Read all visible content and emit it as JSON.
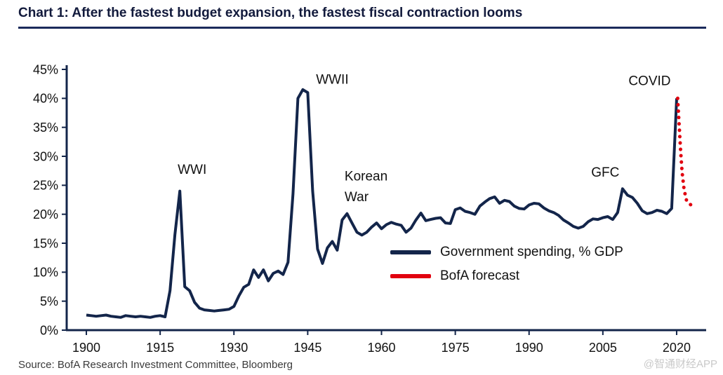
{
  "header": {
    "title": "Chart 1: After the fastest budget expansion, the fastest fiscal contraction looms"
  },
  "footer": {
    "source": "Source:  BofA Research Investment Committee, Bloomberg",
    "watermark": "@智通财经APP"
  },
  "colors": {
    "navy": "#13254a",
    "red": "#e1000f"
  },
  "chart_data": {
    "type": "line",
    "title": "Chart 1: After the fastest budget expansion, the fastest fiscal contraction looms",
    "xlabel": "",
    "ylabel": "",
    "xlim": [
      1896,
      2026
    ],
    "ylim": [
      0,
      45
    ],
    "yticks": [
      0,
      5,
      10,
      15,
      20,
      25,
      30,
      35,
      40,
      45
    ],
    "ytick_suffix": "%",
    "xticks": [
      1900,
      1915,
      1930,
      1945,
      1960,
      1975,
      1990,
      2005,
      2020
    ],
    "grid": false,
    "legend_position": "inside-lower-right",
    "series": [
      {
        "name": "Government spending, % GDP",
        "color_key": "navy",
        "style": "solid",
        "points": [
          [
            1900,
            2.6
          ],
          [
            1901,
            2.5
          ],
          [
            1902,
            2.4
          ],
          [
            1903,
            2.5
          ],
          [
            1904,
            2.6
          ],
          [
            1905,
            2.4
          ],
          [
            1906,
            2.3
          ],
          [
            1907,
            2.2
          ],
          [
            1908,
            2.5
          ],
          [
            1909,
            2.4
          ],
          [
            1910,
            2.3
          ],
          [
            1911,
            2.4
          ],
          [
            1912,
            2.3
          ],
          [
            1913,
            2.2
          ],
          [
            1914,
            2.4
          ],
          [
            1915,
            2.5
          ],
          [
            1916,
            2.3
          ],
          [
            1917,
            6.8
          ],
          [
            1918,
            16.5
          ],
          [
            1919,
            24.0
          ],
          [
            1920,
            7.5
          ],
          [
            1921,
            6.8
          ],
          [
            1922,
            4.8
          ],
          [
            1923,
            3.8
          ],
          [
            1924,
            3.5
          ],
          [
            1925,
            3.4
          ],
          [
            1926,
            3.3
          ],
          [
            1927,
            3.4
          ],
          [
            1928,
            3.5
          ],
          [
            1929,
            3.6
          ],
          [
            1930,
            4.1
          ],
          [
            1931,
            5.9
          ],
          [
            1932,
            7.4
          ],
          [
            1933,
            7.9
          ],
          [
            1934,
            10.4
          ],
          [
            1935,
            9.1
          ],
          [
            1936,
            10.4
          ],
          [
            1937,
            8.5
          ],
          [
            1938,
            9.8
          ],
          [
            1939,
            10.2
          ],
          [
            1940,
            9.6
          ],
          [
            1941,
            11.7
          ],
          [
            1942,
            23.5
          ],
          [
            1943,
            40.0
          ],
          [
            1944,
            41.5
          ],
          [
            1945,
            41.0
          ],
          [
            1946,
            24.0
          ],
          [
            1947,
            14.0
          ],
          [
            1948,
            11.5
          ],
          [
            1949,
            14.2
          ],
          [
            1950,
            15.3
          ],
          [
            1951,
            13.8
          ],
          [
            1952,
            19.0
          ],
          [
            1953,
            20.1
          ],
          [
            1954,
            18.5
          ],
          [
            1955,
            16.9
          ],
          [
            1956,
            16.4
          ],
          [
            1957,
            16.9
          ],
          [
            1958,
            17.8
          ],
          [
            1959,
            18.5
          ],
          [
            1960,
            17.5
          ],
          [
            1961,
            18.2
          ],
          [
            1962,
            18.6
          ],
          [
            1963,
            18.3
          ],
          [
            1964,
            18.1
          ],
          [
            1965,
            16.9
          ],
          [
            1966,
            17.6
          ],
          [
            1967,
            19.0
          ],
          [
            1968,
            20.2
          ],
          [
            1969,
            18.9
          ],
          [
            1970,
            19.1
          ],
          [
            1971,
            19.3
          ],
          [
            1972,
            19.4
          ],
          [
            1973,
            18.5
          ],
          [
            1974,
            18.4
          ],
          [
            1975,
            20.8
          ],
          [
            1976,
            21.1
          ],
          [
            1977,
            20.5
          ],
          [
            1978,
            20.3
          ],
          [
            1979,
            20.0
          ],
          [
            1980,
            21.4
          ],
          [
            1981,
            22.1
          ],
          [
            1982,
            22.7
          ],
          [
            1983,
            23.0
          ],
          [
            1984,
            21.9
          ],
          [
            1985,
            22.4
          ],
          [
            1986,
            22.2
          ],
          [
            1987,
            21.4
          ],
          [
            1988,
            21.0
          ],
          [
            1989,
            20.9
          ],
          [
            1990,
            21.6
          ],
          [
            1991,
            21.9
          ],
          [
            1992,
            21.8
          ],
          [
            1993,
            21.1
          ],
          [
            1994,
            20.6
          ],
          [
            1995,
            20.3
          ],
          [
            1996,
            19.8
          ],
          [
            1997,
            19.0
          ],
          [
            1998,
            18.5
          ],
          [
            1999,
            17.9
          ],
          [
            2000,
            17.6
          ],
          [
            2001,
            17.9
          ],
          [
            2002,
            18.7
          ],
          [
            2003,
            19.2
          ],
          [
            2004,
            19.1
          ],
          [
            2005,
            19.4
          ],
          [
            2006,
            19.6
          ],
          [
            2007,
            19.1
          ],
          [
            2008,
            20.3
          ],
          [
            2009,
            24.4
          ],
          [
            2010,
            23.3
          ],
          [
            2011,
            22.9
          ],
          [
            2012,
            21.9
          ],
          [
            2013,
            20.6
          ],
          [
            2014,
            20.1
          ],
          [
            2015,
            20.3
          ],
          [
            2016,
            20.7
          ],
          [
            2017,
            20.5
          ],
          [
            2018,
            20.1
          ],
          [
            2019,
            21.0
          ],
          [
            2020,
            40.0
          ]
        ]
      },
      {
        "name": "BofA forecast",
        "color_key": "red",
        "style": "dotted",
        "points": [
          [
            2020.2,
            40.0
          ],
          [
            2020.5,
            35.5
          ],
          [
            2020.8,
            31.0
          ],
          [
            2021.1,
            27.3
          ],
          [
            2021.5,
            24.3
          ],
          [
            2022.0,
            22.4
          ],
          [
            2022.7,
            21.7
          ],
          [
            2023.6,
            21.4
          ]
        ]
      }
    ],
    "annotations": [
      {
        "lines": [
          "WWI"
        ],
        "x": 1921.5,
        "y": 27.0,
        "anchor": "middle"
      },
      {
        "lines": [
          "WWII"
        ],
        "x": 1950.0,
        "y": 42.5,
        "anchor": "middle"
      },
      {
        "lines": [
          "Korean",
          "War"
        ],
        "x": 1952.5,
        "y": 25.8,
        "anchor": "start"
      },
      {
        "lines": [
          "GFC"
        ],
        "x": 2005.5,
        "y": 26.5,
        "anchor": "middle"
      },
      {
        "lines": [
          "COVID"
        ],
        "x": 2014.5,
        "y": 42.3,
        "anchor": "middle"
      }
    ]
  }
}
